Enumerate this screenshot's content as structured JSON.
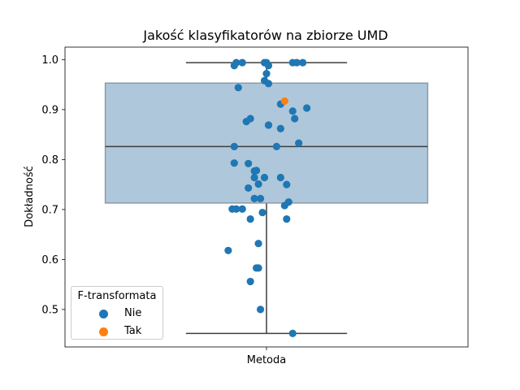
{
  "chart_data": {
    "type": "box-strip",
    "title": "Jakość klasyfikatorów na zbiorze UMD",
    "xlabel": "",
    "ylabel": "Dokładność",
    "categories": [
      "Metoda"
    ],
    "ylim": [
      0.425,
      1.025
    ],
    "yticks": [
      0.5,
      0.6,
      0.7,
      0.8,
      0.9,
      1.0
    ],
    "ytick_labels": [
      "0.5",
      "0.6",
      "0.7",
      "0.8",
      "0.9",
      "1.0"
    ],
    "box": {
      "whisker_low": 0.452,
      "q1": 0.713,
      "median": 0.826,
      "q3": 0.953,
      "whisker_high": 0.994,
      "color": "#aec7da"
    },
    "legend": {
      "title": "F-transformata",
      "placement": "lower-left",
      "entries": [
        {
          "label": "Nie",
          "color": "#1f77b4"
        },
        {
          "label": "Tak",
          "color": "#ff7f0e"
        }
      ]
    },
    "series": [
      {
        "name": "Nie",
        "color": "#1f77b4",
        "points": [
          [
            -0.15,
            0.994
          ],
          [
            -0.12,
            0.994
          ],
          [
            -0.16,
            0.988
          ],
          [
            -0.01,
            0.994
          ],
          [
            0.0,
            0.994
          ],
          [
            0.01,
            0.988
          ],
          [
            0.13,
            0.994
          ],
          [
            0.15,
            0.994
          ],
          [
            0.18,
            0.994
          ],
          [
            0.0,
            0.972
          ],
          [
            -0.01,
            0.958
          ],
          [
            0.01,
            0.952
          ],
          [
            -0.14,
            0.944
          ],
          [
            0.07,
            0.911
          ],
          [
            0.2,
            0.903
          ],
          [
            0.13,
            0.897
          ],
          [
            -0.08,
            0.882
          ],
          [
            -0.1,
            0.876
          ],
          [
            0.14,
            0.882
          ],
          [
            0.01,
            0.869
          ],
          [
            0.07,
            0.862
          ],
          [
            0.16,
            0.833
          ],
          [
            -0.16,
            0.826
          ],
          [
            0.05,
            0.826
          ],
          [
            -0.16,
            0.793
          ],
          [
            -0.09,
            0.792
          ],
          [
            -0.05,
            0.778
          ],
          [
            -0.06,
            0.777
          ],
          [
            -0.06,
            0.764
          ],
          [
            -0.01,
            0.764
          ],
          [
            0.07,
            0.764
          ],
          [
            -0.04,
            0.751
          ],
          [
            0.1,
            0.75
          ],
          [
            -0.09,
            0.743
          ],
          [
            -0.06,
            0.722
          ],
          [
            -0.03,
            0.722
          ],
          [
            0.11,
            0.715
          ],
          [
            0.09,
            0.708
          ],
          [
            -0.17,
            0.701
          ],
          [
            -0.15,
            0.701
          ],
          [
            -0.12,
            0.701
          ],
          [
            -0.02,
            0.694
          ],
          [
            -0.08,
            0.681
          ],
          [
            0.1,
            0.681
          ],
          [
            -0.04,
            0.632
          ],
          [
            -0.19,
            0.618
          ],
          [
            -0.05,
            0.583
          ],
          [
            -0.04,
            0.583
          ],
          [
            -0.08,
            0.556
          ],
          [
            -0.03,
            0.5
          ],
          [
            0.13,
            0.452
          ]
        ]
      },
      {
        "name": "Tak",
        "color": "#ff7f0e",
        "points": [
          [
            0.09,
            0.917
          ]
        ]
      }
    ]
  }
}
